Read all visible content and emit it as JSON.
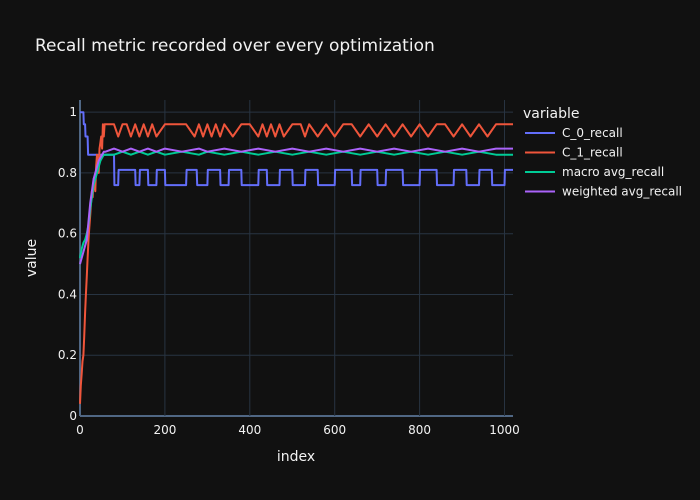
{
  "chart_data": {
    "type": "line",
    "title": "Recall metric recorded over every optimization",
    "xlabel": "index",
    "ylabel": "value",
    "xlim": [
      0,
      1020
    ],
    "ylim": [
      0,
      1.04
    ],
    "xticks": [
      0,
      200,
      400,
      600,
      800,
      1000
    ],
    "xtick_labels": [
      "0",
      "200",
      "400",
      "600",
      "800",
      "1000"
    ],
    "yticks": [
      0,
      0.2,
      0.4,
      0.6,
      0.8,
      1
    ],
    "ytick_labels": [
      "0",
      "0.2",
      "0.4",
      "0.6",
      "0.8",
      "1"
    ],
    "grid": true,
    "legend_title": "variable",
    "legend_position": "right",
    "series": [
      {
        "name": "C_0_recall",
        "color": "#636efa",
        "x": [
          0,
          8,
          9,
          12,
          13,
          18,
          19,
          22,
          23,
          25,
          26,
          28,
          29,
          33,
          34,
          38,
          39,
          42,
          43,
          80,
          81,
          90,
          91,
          130,
          131,
          140,
          141,
          160,
          161,
          180,
          181,
          200,
          201,
          250,
          251,
          275,
          276,
          300,
          301,
          330,
          331,
          350,
          351,
          380,
          381,
          420,
          421,
          440,
          441,
          470,
          471,
          500,
          501,
          530,
          531,
          560,
          561,
          600,
          601,
          640,
          641,
          660,
          661,
          700,
          701,
          720,
          721,
          760,
          761,
          800,
          801,
          840,
          841,
          880,
          881,
          910,
          911,
          940,
          941,
          970,
          971,
          1000,
          1001,
          1020
        ],
        "y": [
          1.0,
          1.0,
          0.96,
          0.96,
          0.92,
          0.92,
          0.86,
          0.86,
          0.86,
          0.86,
          0.86,
          0.86,
          0.86,
          0.86,
          0.86,
          0.86,
          0.86,
          0.86,
          0.86,
          0.86,
          0.76,
          0.76,
          0.81,
          0.81,
          0.76,
          0.76,
          0.81,
          0.81,
          0.76,
          0.76,
          0.81,
          0.81,
          0.76,
          0.76,
          0.81,
          0.81,
          0.76,
          0.76,
          0.81,
          0.81,
          0.76,
          0.76,
          0.81,
          0.81,
          0.76,
          0.76,
          0.81,
          0.81,
          0.76,
          0.76,
          0.81,
          0.81,
          0.76,
          0.76,
          0.81,
          0.81,
          0.76,
          0.76,
          0.81,
          0.81,
          0.76,
          0.76,
          0.81,
          0.81,
          0.76,
          0.76,
          0.81,
          0.81,
          0.76,
          0.76,
          0.81,
          0.81,
          0.76,
          0.76,
          0.81,
          0.81,
          0.76,
          0.76,
          0.81,
          0.81,
          0.76,
          0.76,
          0.81,
          0.81
        ]
      },
      {
        "name": "C_1_recall",
        "color": "#ef553b",
        "x": [
          0,
          2,
          4,
          6,
          8,
          10,
          12,
          14,
          16,
          18,
          20,
          22,
          24,
          26,
          28,
          30,
          32,
          34,
          36,
          38,
          40,
          42,
          44,
          46,
          48,
          50,
          52,
          54,
          56,
          58,
          60,
          70,
          80,
          90,
          100,
          110,
          120,
          130,
          140,
          150,
          160,
          170,
          180,
          200,
          220,
          250,
          270,
          280,
          290,
          300,
          310,
          320,
          330,
          340,
          360,
          380,
          400,
          420,
          430,
          440,
          450,
          460,
          470,
          480,
          500,
          520,
          530,
          540,
          560,
          580,
          600,
          620,
          640,
          660,
          680,
          700,
          720,
          740,
          760,
          780,
          800,
          820,
          840,
          860,
          880,
          900,
          920,
          940,
          960,
          980,
          1000,
          1020
        ],
        "y": [
          0.04,
          0.1,
          0.14,
          0.18,
          0.2,
          0.26,
          0.34,
          0.4,
          0.46,
          0.52,
          0.58,
          0.62,
          0.66,
          0.7,
          0.74,
          0.72,
          0.78,
          0.76,
          0.74,
          0.82,
          0.86,
          0.84,
          0.8,
          0.88,
          0.9,
          0.92,
          0.88,
          0.96,
          0.92,
          0.96,
          0.96,
          0.96,
          0.96,
          0.92,
          0.96,
          0.96,
          0.92,
          0.96,
          0.92,
          0.96,
          0.92,
          0.96,
          0.92,
          0.96,
          0.96,
          0.96,
          0.92,
          0.96,
          0.92,
          0.96,
          0.92,
          0.96,
          0.92,
          0.96,
          0.92,
          0.96,
          0.96,
          0.92,
          0.96,
          0.92,
          0.96,
          0.92,
          0.96,
          0.92,
          0.96,
          0.96,
          0.92,
          0.96,
          0.92,
          0.96,
          0.92,
          0.96,
          0.96,
          0.92,
          0.96,
          0.92,
          0.96,
          0.92,
          0.96,
          0.92,
          0.96,
          0.92,
          0.96,
          0.96,
          0.92,
          0.96,
          0.92,
          0.96,
          0.92,
          0.96,
          0.96,
          0.96
        ]
      },
      {
        "name": "macro avg_recall",
        "color": "#00cc96",
        "x": [
          0,
          4,
          8,
          12,
          16,
          20,
          24,
          28,
          32,
          36,
          40,
          44,
          48,
          52,
          56,
          60,
          80,
          100,
          120,
          140,
          160,
          180,
          200,
          240,
          280,
          300,
          340,
          380,
          420,
          460,
          500,
          540,
          580,
          620,
          660,
          700,
          740,
          780,
          820,
          860,
          900,
          940,
          980,
          1020
        ],
        "y": [
          0.52,
          0.55,
          0.57,
          0.58,
          0.6,
          0.63,
          0.68,
          0.72,
          0.76,
          0.78,
          0.8,
          0.82,
          0.84,
          0.85,
          0.86,
          0.86,
          0.86,
          0.87,
          0.86,
          0.87,
          0.86,
          0.87,
          0.86,
          0.87,
          0.86,
          0.87,
          0.86,
          0.87,
          0.86,
          0.87,
          0.86,
          0.87,
          0.86,
          0.87,
          0.86,
          0.87,
          0.86,
          0.87,
          0.86,
          0.87,
          0.86,
          0.87,
          0.86,
          0.86
        ]
      },
      {
        "name": "weighted avg_recall",
        "color": "#ab63fa",
        "x": [
          0,
          4,
          8,
          12,
          16,
          20,
          24,
          28,
          32,
          36,
          40,
          44,
          48,
          52,
          56,
          60,
          80,
          100,
          120,
          140,
          160,
          180,
          200,
          240,
          280,
          300,
          340,
          380,
          420,
          460,
          500,
          540,
          580,
          620,
          660,
          700,
          740,
          780,
          820,
          860,
          900,
          940,
          980,
          1020
        ],
        "y": [
          0.5,
          0.52,
          0.54,
          0.56,
          0.58,
          0.64,
          0.7,
          0.74,
          0.78,
          0.8,
          0.82,
          0.84,
          0.85,
          0.86,
          0.87,
          0.87,
          0.88,
          0.87,
          0.88,
          0.87,
          0.88,
          0.87,
          0.88,
          0.87,
          0.88,
          0.87,
          0.88,
          0.87,
          0.88,
          0.87,
          0.88,
          0.87,
          0.88,
          0.87,
          0.88,
          0.87,
          0.88,
          0.87,
          0.88,
          0.87,
          0.88,
          0.87,
          0.88,
          0.88
        ]
      }
    ]
  }
}
